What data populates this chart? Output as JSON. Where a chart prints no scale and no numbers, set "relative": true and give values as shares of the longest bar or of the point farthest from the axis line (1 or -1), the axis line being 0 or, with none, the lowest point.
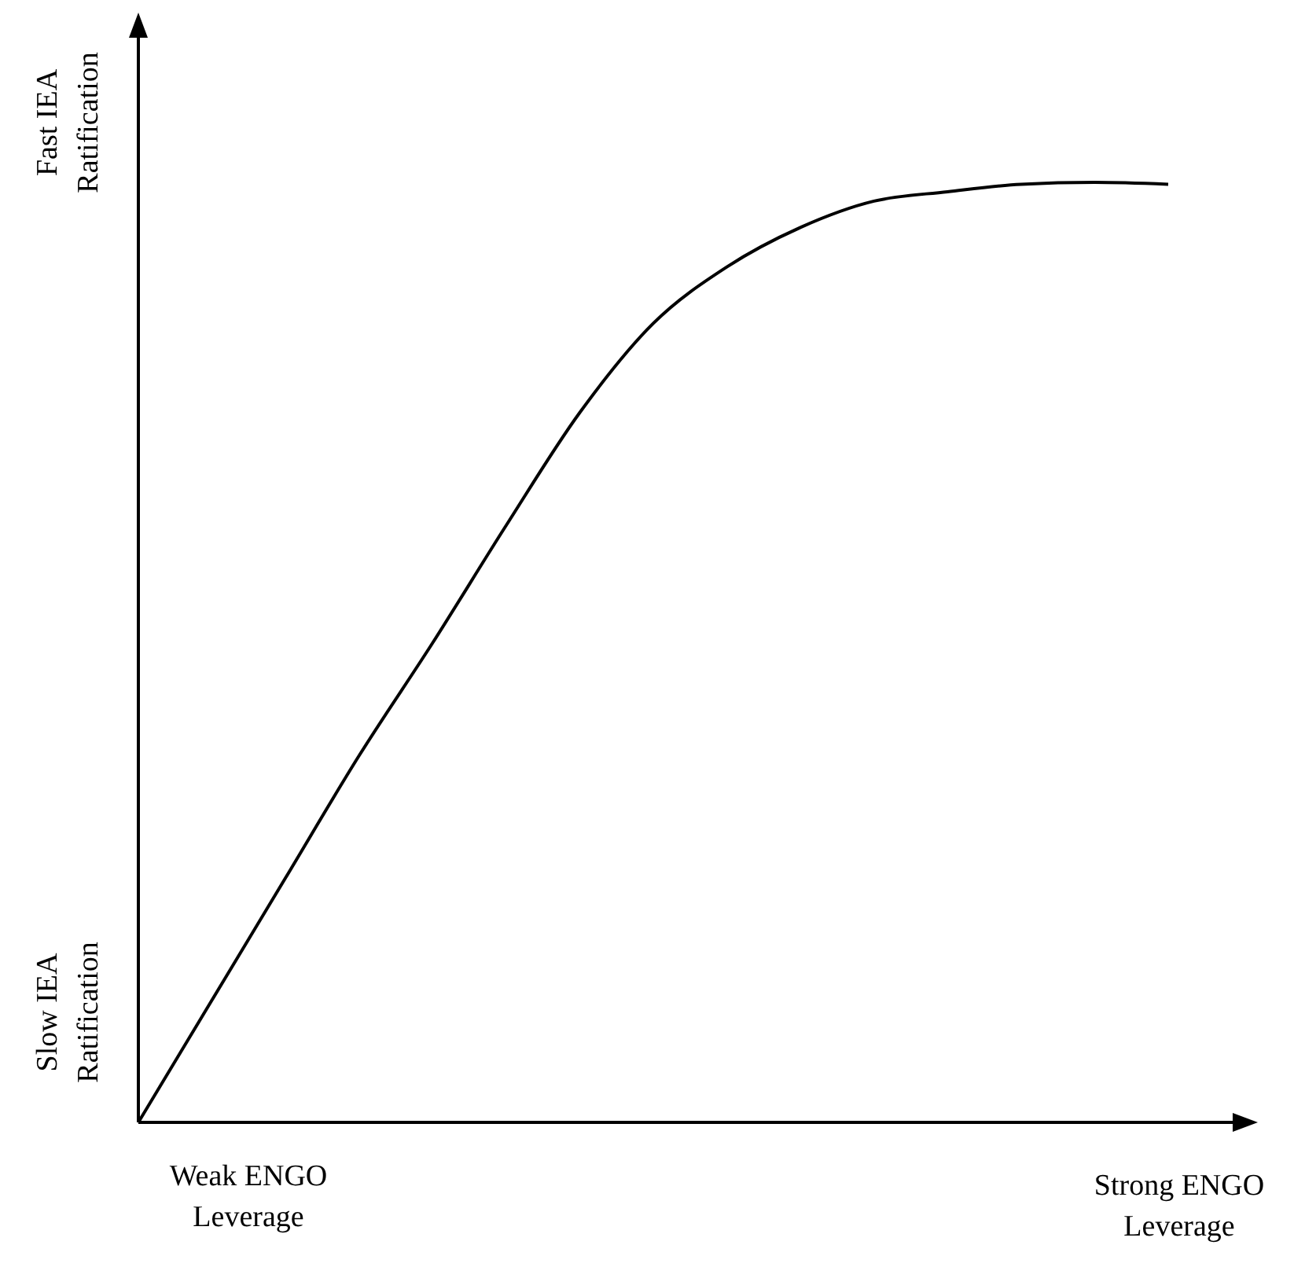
{
  "chart_data": {
    "type": "line",
    "relative": true,
    "color": "#000000",
    "categories": [
      null,
      null,
      null,
      null,
      null,
      null,
      null,
      null,
      null,
      null,
      null,
      null,
      null,
      null,
      null
    ],
    "values": [
      0,
      0.13,
      0.26,
      0.39,
      0.51,
      0.635,
      0.755,
      0.85,
      0.91,
      0.952,
      0.98,
      0.99,
      0.998,
      1,
      0.998
    ],
    "annotations": [
      "Weak ENGO Leverage",
      "Strong ENGO Leverage",
      "Slow IEA Ratification",
      "Fast IEA Ratification"
    ],
    "marker": "none",
    "line_style": "solid",
    "grid": false
  }
}
